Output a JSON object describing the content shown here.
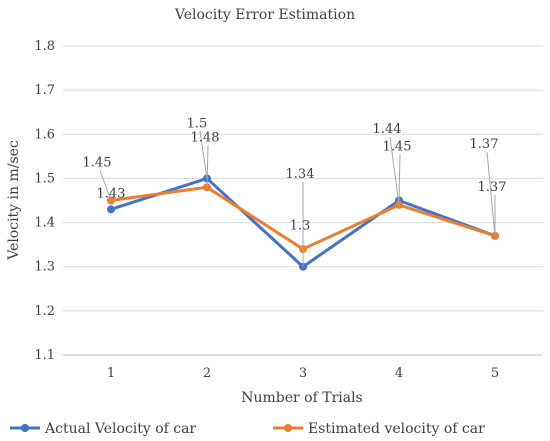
{
  "chart_data": {
    "type": "line",
    "title": "Velocity Error Estimation",
    "xlabel": "Number of Trials",
    "ylabel": "Velocity in m/sec",
    "categories": [
      "1",
      "2",
      "3",
      "4",
      "5"
    ],
    "ylim": [
      1.1,
      1.8
    ],
    "yticks": [
      "1.1",
      "1.2",
      "1.3",
      "1.4",
      "1.5",
      "1.6",
      "1.7",
      "1.8"
    ],
    "grid": true,
    "legend_position": "bottom",
    "series": [
      {
        "name": "Actual Velocity  of car",
        "color": "#4472C4",
        "values": [
          1.43,
          1.5,
          1.3,
          1.45,
          1.37
        ],
        "labels": [
          "1.43",
          "1.5",
          "1.3",
          "1.45",
          "1.37"
        ]
      },
      {
        "name": "Estimated velocity of car",
        "color": "#ED7D31",
        "values": [
          1.45,
          1.48,
          1.34,
          1.44,
          1.37
        ],
        "labels": [
          "1.45",
          "1.48",
          "1.34",
          "1.44",
          "1.37"
        ]
      }
    ]
  }
}
